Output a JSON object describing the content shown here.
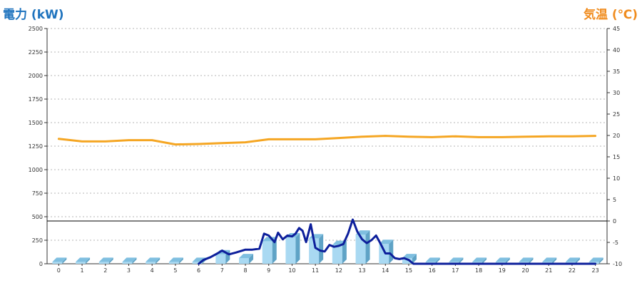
{
  "chart_data": {
    "type": "bar",
    "left_axis_title": "電力 (kW)",
    "right_axis_title": "気温 (℃)",
    "left_axis": {
      "min": 0,
      "max": 2500,
      "ticks": [
        0,
        250,
        500,
        750,
        1000,
        1250,
        1500,
        1750,
        2000,
        2250,
        2500
      ]
    },
    "right_axis": {
      "min": -10,
      "max": 45,
      "ticks": [
        -10,
        -5,
        0,
        5,
        10,
        15,
        20,
        25,
        30,
        35,
        40,
        45
      ]
    },
    "categories": [
      "0",
      "1",
      "2",
      "3",
      "4",
      "5",
      "6",
      "7",
      "8",
      "9",
      "10",
      "11",
      "12",
      "13",
      "14",
      "15",
      "16",
      "17",
      "18",
      "19",
      "20",
      "21",
      "22",
      "23"
    ],
    "grid": true,
    "reference_line": {
      "value": 0,
      "axis": "right"
    },
    "series": [
      {
        "kind": "bar",
        "axis": "left",
        "values": [
          20,
          20,
          20,
          20,
          20,
          20,
          20,
          100,
          60,
          240,
          280,
          270,
          200,
          310,
          210,
          60,
          20,
          20,
          20,
          20,
          20,
          20,
          20,
          20
        ]
      },
      {
        "kind": "line",
        "axis": "left",
        "x": [
          6.0,
          6.2,
          6.5,
          6.8,
          7.0,
          7.3,
          7.6,
          8.0,
          8.3,
          8.6,
          8.8,
          9.0,
          9.25,
          9.4,
          9.6,
          9.8,
          10.0,
          10.15,
          10.3,
          10.45,
          10.6,
          10.8,
          11.0,
          11.2,
          11.4,
          11.6,
          11.8,
          12.0,
          12.2,
          12.4,
          12.6,
          12.8,
          13.0,
          13.2,
          13.4,
          13.6,
          13.8,
          14.0,
          14.2,
          14.4,
          14.6,
          14.8,
          15.0,
          15.2,
          15.5,
          15.8,
          16.0,
          17,
          18,
          19,
          20,
          21,
          22,
          23
        ],
        "values": [
          0,
          40,
          70,
          110,
          140,
          100,
          120,
          150,
          150,
          160,
          320,
          300,
          230,
          330,
          260,
          300,
          290,
          320,
          380,
          350,
          230,
          420,
          170,
          140,
          130,
          200,
          180,
          190,
          210,
          320,
          470,
          340,
          260,
          220,
          250,
          300,
          210,
          110,
          110,
          60,
          50,
          60,
          40,
          0,
          0,
          0,
          0,
          0,
          0,
          0,
          0,
          0,
          0,
          0
        ]
      },
      {
        "kind": "line",
        "axis": "right",
        "x": [
          0,
          1,
          2,
          3,
          4,
          5,
          6,
          7,
          8,
          9,
          10,
          11,
          12,
          13,
          14,
          15,
          16,
          17,
          18,
          19,
          20,
          21,
          22,
          23
        ],
        "values": [
          19.2,
          18.6,
          18.6,
          18.9,
          18.9,
          17.9,
          18.0,
          18.2,
          18.4,
          19.1,
          19.1,
          19.1,
          19.4,
          19.7,
          19.9,
          19.7,
          19.6,
          19.8,
          19.6,
          19.6,
          19.7,
          19.8,
          19.8,
          19.9
        ]
      }
    ],
    "colors": {
      "bar_front": "#a9d9f2",
      "bar_side": "#5fa3c6",
      "bar_top": "#7fbfe0",
      "power_line": "#0d1f9b",
      "temp_line": "#f5a623",
      "grid": "#b5b5b5",
      "left_title": "#1e73be",
      "right_title": "#f08c1e"
    }
  }
}
